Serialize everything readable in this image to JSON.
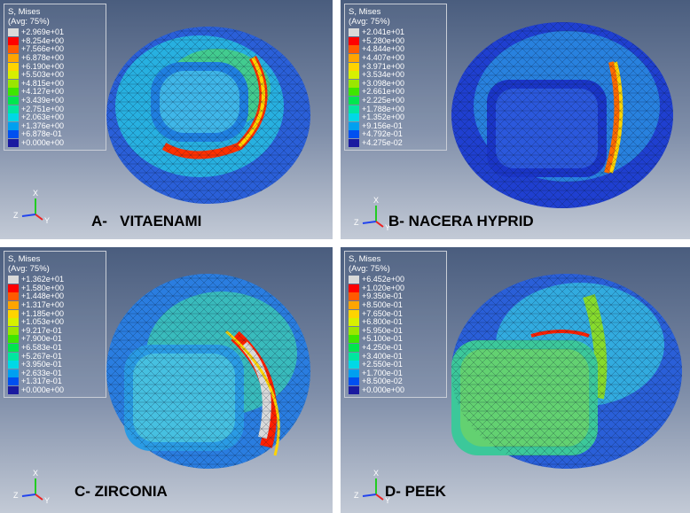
{
  "panels": [
    {
      "caption": "A-   VITAENAMI",
      "legend_title": "S, Mises",
      "legend_subtitle": "(Avg: 75%)",
      "legend_values": [
        "+2.969e+01",
        "+8.254e+00",
        "+7.566e+00",
        "+6.878e+00",
        "+6.190e+00",
        "+5.503e+00",
        "+4.815e+00",
        "+4.127e+00",
        "+3.439e+00",
        "+2.751e+00",
        "+2.063e+00",
        "+1.376e+00",
        "+6.878e-01",
        "+0.000e+00"
      ],
      "axes": {
        "x": "X",
        "y": "Y",
        "z": "Z"
      }
    },
    {
      "caption": "B- NACERA HYPRID",
      "legend_title": "S, Mises",
      "legend_subtitle": "(Avg: 75%)",
      "legend_values": [
        "+2.041e+01",
        "+5.280e+00",
        "+4.844e+00",
        "+4.407e+00",
        "+3.971e+00",
        "+3.534e+00",
        "+3.098e+00",
        "+2.661e+00",
        "+2.225e+00",
        "+1.788e+00",
        "+1.352e+00",
        "+9.156e-01",
        "+4.792e-01",
        "+4.275e-02"
      ],
      "axes": {
        "x": "X",
        "y": "Y",
        "z": "Z"
      }
    },
    {
      "caption": "C- ZIRCONIA",
      "legend_title": "S, Mises",
      "legend_subtitle": "(Avg: 75%)",
      "legend_values": [
        "+1.362e+01",
        "+1.580e+00",
        "+1.448e+00",
        "+1.317e+00",
        "+1.185e+00",
        "+1.053e+00",
        "+9.217e-01",
        "+7.900e-01",
        "+6.583e-01",
        "+5.267e-01",
        "+3.950e-01",
        "+2.633e-01",
        "+1.317e-01",
        "+0.000e+00"
      ],
      "axes": {
        "x": "X",
        "y": "Y",
        "z": "Z"
      }
    },
    {
      "caption": "D- PEEK",
      "legend_title": "S, Mises",
      "legend_subtitle": "(Avg: 75%)",
      "legend_values": [
        "+6.452e+00",
        "+1.020e+00",
        "+9.350e-01",
        "+8.500e-01",
        "+7.650e-01",
        "+6.800e-01",
        "+5.950e-01",
        "+5.100e-01",
        "+4.250e-01",
        "+3.400e-01",
        "+2.550e-01",
        "+1.700e-01",
        "+8.500e-02",
        "+0.000e+00"
      ],
      "axes": {
        "x": "X",
        "y": "Y",
        "z": "Z"
      }
    }
  ],
  "colors": {
    "legend_swatches": [
      "#d9d9d9",
      "#ff0000",
      "#ff5a00",
      "#ffa500",
      "#ffd400",
      "#d7f000",
      "#9be600",
      "#3ee600",
      "#00e64e",
      "#00e6a0",
      "#00d8e6",
      "#00a0f0",
      "#0050f0",
      "#1a1aa0"
    ],
    "background_top": "#4a5d7e",
    "background_bottom": "#c3cad6"
  }
}
